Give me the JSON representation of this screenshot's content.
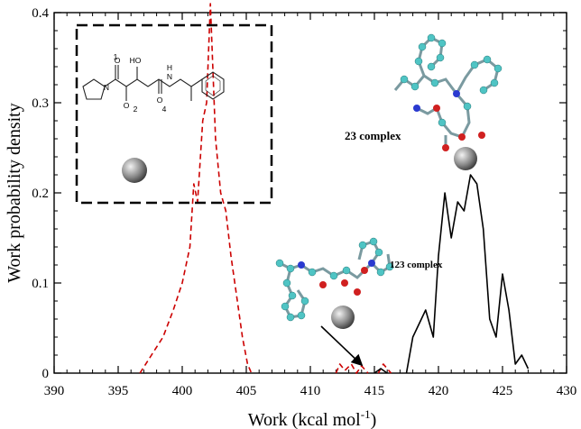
{
  "chart_data": {
    "type": "line",
    "xlabel": "Work (kcal mol",
    "xlabel_sup": "-1",
    "xlabel_close": ")",
    "ylabel": "Work probability density",
    "xlim": [
      390,
      430
    ],
    "ylim": [
      0,
      0.4
    ],
    "x_ticks": [
      "390",
      "395",
      "400",
      "405",
      "410",
      "415",
      "420",
      "425",
      "430"
    ],
    "y_ticks": [
      "0",
      "0.1",
      "0.2",
      "0.3",
      "0.4"
    ],
    "grid": false,
    "series": [
      {
        "color": "#cc0000",
        "dash": "dashed",
        "segments": [
          [
            [
              396.7,
              0.0
            ],
            [
              397.6,
              0.02
            ],
            [
              398.5,
              0.04
            ],
            [
              399.3,
              0.07
            ],
            [
              400.0,
              0.1
            ],
            [
              400.6,
              0.14
            ],
            [
              400.9,
              0.21
            ],
            [
              401.2,
              0.19
            ],
            [
              401.6,
              0.28
            ],
            [
              401.9,
              0.3
            ],
            [
              402.2,
              0.41
            ],
            [
              402.6,
              0.26
            ],
            [
              403.0,
              0.2
            ],
            [
              403.4,
              0.18
            ],
            [
              403.8,
              0.13
            ],
            [
              404.3,
              0.08
            ],
            [
              404.7,
              0.04
            ],
            [
              405.1,
              0.01
            ],
            [
              405.4,
              0.0
            ]
          ],
          [
            [
              412.0,
              0.0
            ],
            [
              412.3,
              0.01
            ],
            [
              412.7,
              0.003
            ],
            [
              413.2,
              0.01
            ],
            [
              413.6,
              0.0
            ],
            [
              414.0,
              0.008
            ],
            [
              414.5,
              0.0
            ]
          ],
          [
            [
              415.3,
              0.0
            ],
            [
              415.7,
              0.01
            ],
            [
              416.3,
              0.0
            ]
          ]
        ]
      },
      {
        "color": "#000000",
        "dash": "solid",
        "segments": [
          [
            [
              415.0,
              0.0
            ],
            [
              415.5,
              0.005
            ],
            [
              416.0,
              0.0
            ]
          ],
          [
            [
              417.5,
              0.0
            ],
            [
              418.0,
              0.04
            ],
            [
              419.0,
              0.07
            ],
            [
              419.6,
              0.04
            ],
            [
              420.0,
              0.13
            ],
            [
              420.5,
              0.2
            ],
            [
              421.0,
              0.15
            ],
            [
              421.5,
              0.19
            ],
            [
              422.0,
              0.18
            ],
            [
              422.5,
              0.22
            ],
            [
              423.0,
              0.21
            ],
            [
              423.5,
              0.16
            ],
            [
              424.0,
              0.06
            ],
            [
              424.5,
              0.04
            ],
            [
              425.0,
              0.11
            ],
            [
              425.5,
              0.07
            ],
            [
              426.0,
              0.01
            ],
            [
              426.5,
              0.02
            ],
            [
              427.0,
              0.005
            ]
          ]
        ]
      }
    ],
    "annotations": [
      {
        "text": "23 complex"
      },
      {
        "text": "123 complex"
      }
    ],
    "molecule_labels": [
      "1",
      "HO",
      "N",
      "H",
      "N",
      "O",
      "O",
      "O",
      "2",
      "4"
    ]
  }
}
